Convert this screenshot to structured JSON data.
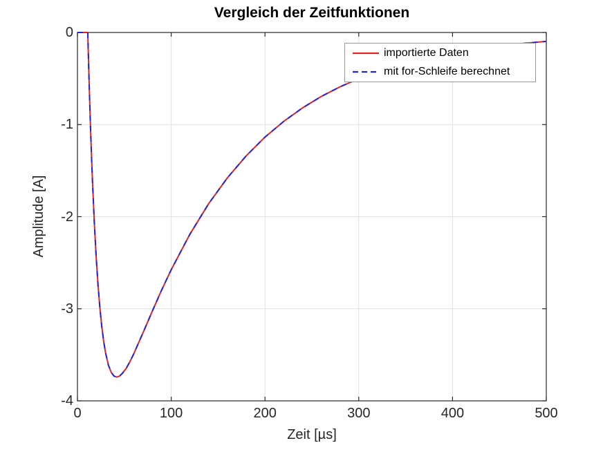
{
  "figure": {
    "title": "Vergleich der Zeitfunktionen",
    "xlabel": "Zeit [µs]",
    "ylabel": "Amplitude [A]"
  },
  "legend": {
    "items": [
      {
        "label": "importierte Daten",
        "color": "#e32222",
        "style": "solid"
      },
      {
        "label": "mit for-Schleife berechnet",
        "color": "#2222e3",
        "style": "dashed"
      }
    ]
  },
  "colors": {
    "axis": "#262626",
    "tick_text": "#262626",
    "grid": "#e0e0e0",
    "series_red": "#e32222",
    "series_blue": "#2222e3",
    "legend_border": "#969696",
    "background": "#ffffff"
  },
  "chart_data": {
    "type": "line",
    "title": "Vergleich der Zeitfunktionen",
    "xlabel": "Zeit [µs]",
    "ylabel": "Amplitude [A]",
    "xlim": [
      0,
      500
    ],
    "ylim": [
      -4,
      0
    ],
    "xticks": [
      0,
      100,
      200,
      300,
      400,
      500
    ],
    "yticks": [
      0,
      -1,
      -2,
      -3,
      -4
    ],
    "grid": true,
    "legend_position": "northeast",
    "x": [
      0,
      5,
      10,
      11,
      12,
      13,
      14,
      15,
      16,
      18,
      20,
      22,
      24,
      26,
      28,
      30,
      33,
      36,
      39,
      42,
      45,
      48,
      52,
      56,
      60,
      70,
      80,
      90,
      100,
      120,
      140,
      160,
      180,
      200,
      220,
      240,
      260,
      280,
      300,
      320,
      340,
      360,
      380,
      400,
      420,
      440,
      460,
      480,
      500
    ],
    "series": [
      {
        "name": "importierte Daten",
        "color": "#e32222",
        "style": "solid",
        "values": [
          0,
          0,
          0,
          0,
          -0.384,
          -0.734,
          -1.053,
          -1.344,
          -1.608,
          -2.066,
          -2.442,
          -2.75,
          -2.999,
          -3.198,
          -3.357,
          -3.48,
          -3.611,
          -3.691,
          -3.731,
          -3.742,
          -3.73,
          -3.7,
          -3.647,
          -3.574,
          -3.49,
          -3.259,
          -3.022,
          -2.792,
          -2.576,
          -2.189,
          -1.858,
          -1.577,
          -1.339,
          -1.136,
          -0.965,
          -0.819,
          -0.695,
          -0.59,
          -0.501,
          -0.425,
          -0.361,
          -0.306,
          -0.26,
          -0.221,
          -0.187,
          -0.159,
          -0.135,
          -0.114,
          -0.097
        ]
      },
      {
        "name": "mit for-Schleife berechnet",
        "color": "#2222e3",
        "style": "dashed",
        "values": [
          0,
          0,
          0,
          0,
          -0.384,
          -0.734,
          -1.053,
          -1.344,
          -1.608,
          -2.066,
          -2.442,
          -2.75,
          -2.999,
          -3.198,
          -3.357,
          -3.48,
          -3.611,
          -3.691,
          -3.731,
          -3.742,
          -3.73,
          -3.7,
          -3.647,
          -3.574,
          -3.49,
          -3.259,
          -3.022,
          -2.792,
          -2.576,
          -2.189,
          -1.858,
          -1.577,
          -1.339,
          -1.136,
          -0.965,
          -0.819,
          -0.695,
          -0.59,
          -0.501,
          -0.425,
          -0.361,
          -0.306,
          -0.26,
          -0.221,
          -0.187,
          -0.159,
          -0.135,
          -0.114,
          -0.097
        ]
      }
    ]
  }
}
